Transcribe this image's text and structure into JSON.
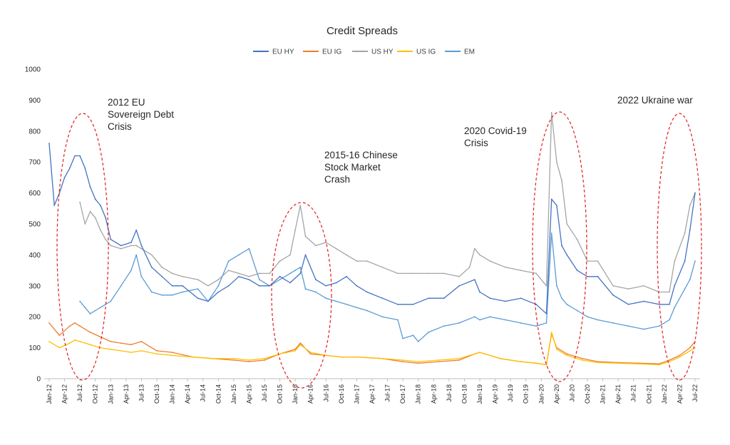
{
  "chart_data": {
    "type": "line",
    "title": "Credit Spreads",
    "xlabel": "",
    "ylabel": "",
    "ylim": [
      0,
      1000
    ],
    "yticks": [
      0,
      100,
      200,
      300,
      400,
      500,
      600,
      700,
      800,
      900,
      1000
    ],
    "xticks": [
      "Jan-12",
      "Apr-12",
      "Jul-12",
      "Oct-12",
      "Jan-13",
      "Apr-13",
      "Jul-13",
      "Oct-13",
      "Jan-14",
      "Apr-14",
      "Jul-14",
      "Oct-14",
      "Jan-15",
      "Apr-15",
      "Jul-15",
      "Oct-15",
      "Jan-16",
      "Apr-16",
      "Jul-16",
      "Oct-16",
      "Jan-17",
      "Apr-17",
      "Jul-17",
      "Oct-17",
      "Jan-18",
      "Apr-18",
      "Jul-18",
      "Oct-18",
      "Jan-19",
      "Apr-19",
      "Jul-19",
      "Oct-19",
      "Jan-20",
      "Apr-20",
      "Jul-20",
      "Oct-20",
      "Jan-21",
      "Apr-21",
      "Jul-21",
      "Oct-21",
      "Jan-22",
      "Apr-22",
      "Jul-22"
    ],
    "legend_position": "top",
    "grid": false,
    "series": [
      {
        "name": "EU HY",
        "color": "#4472c4",
        "x": [
          "2012-01",
          "2012-02",
          "2012-03",
          "2012-04",
          "2012-05",
          "2012-06",
          "2012-07",
          "2012-08",
          "2012-09",
          "2012-10",
          "2012-11",
          "2012-12",
          "2013-01",
          "2013-03",
          "2013-05",
          "2013-06",
          "2013-07",
          "2013-09",
          "2013-11",
          "2014-01",
          "2014-03",
          "2014-06",
          "2014-08",
          "2014-10",
          "2014-12",
          "2015-02",
          "2015-04",
          "2015-06",
          "2015-08",
          "2015-10",
          "2015-12",
          "2016-02",
          "2016-03",
          "2016-05",
          "2016-07",
          "2016-09",
          "2016-11",
          "2017-01",
          "2017-03",
          "2017-06",
          "2017-09",
          "2017-12",
          "2018-03",
          "2018-06",
          "2018-09",
          "2018-12",
          "2019-01",
          "2019-03",
          "2019-06",
          "2019-09",
          "2019-12",
          "2020-02",
          "2020-03",
          "2020-04",
          "2020-05",
          "2020-06",
          "2020-08",
          "2020-10",
          "2020-12",
          "2021-03",
          "2021-06",
          "2021-09",
          "2021-12",
          "2022-02",
          "2022-03",
          "2022-05",
          "2022-06",
          "2022-07"
        ],
        "values": [
          760,
          560,
          600,
          650,
          680,
          720,
          720,
          680,
          620,
          580,
          560,
          520,
          450,
          430,
          440,
          480,
          430,
          360,
          330,
          300,
          300,
          260,
          250,
          280,
          300,
          330,
          320,
          300,
          300,
          330,
          310,
          340,
          400,
          320,
          300,
          310,
          330,
          300,
          280,
          260,
          240,
          240,
          260,
          260,
          300,
          320,
          280,
          260,
          250,
          260,
          240,
          210,
          580,
          560,
          430,
          400,
          350,
          330,
          330,
          270,
          240,
          250,
          240,
          240,
          300,
          380,
          480,
          600
        ]
      },
      {
        "name": "EU IG",
        "color": "#ed7d31",
        "x": [
          "2012-01",
          "2012-03",
          "2012-05",
          "2012-06",
          "2012-07",
          "2012-09",
          "2012-11",
          "2013-01",
          "2013-03",
          "2013-05",
          "2013-07",
          "2013-10",
          "2014-01",
          "2014-05",
          "2014-09",
          "2015-01",
          "2015-04",
          "2015-07",
          "2015-10",
          "2016-01",
          "2016-02",
          "2016-04",
          "2016-07",
          "2016-10",
          "2017-01",
          "2017-06",
          "2017-10",
          "2018-01",
          "2018-05",
          "2018-09",
          "2018-12",
          "2019-01",
          "2019-05",
          "2019-09",
          "2019-12",
          "2020-02",
          "2020-03",
          "2020-04",
          "2020-06",
          "2020-09",
          "2020-12",
          "2021-04",
          "2021-08",
          "2021-12",
          "2022-02",
          "2022-04",
          "2022-06",
          "2022-07"
        ],
        "values": [
          180,
          140,
          170,
          180,
          170,
          150,
          135,
          120,
          115,
          110,
          120,
          90,
          85,
          70,
          65,
          60,
          55,
          60,
          80,
          95,
          115,
          80,
          75,
          70,
          70,
          65,
          55,
          50,
          55,
          60,
          80,
          85,
          65,
          55,
          50,
          45,
          145,
          100,
          80,
          65,
          55,
          52,
          50,
          48,
          60,
          75,
          100,
          120
        ]
      },
      {
        "name": "US HY",
        "color": "#a5a5a5",
        "x": [
          "2012-07",
          "2012-08",
          "2012-09",
          "2012-10",
          "2012-11",
          "2012-12",
          "2013-01",
          "2013-03",
          "2013-05",
          "2013-06",
          "2013-07",
          "2013-09",
          "2013-11",
          "2014-01",
          "2014-03",
          "2014-06",
          "2014-08",
          "2014-10",
          "2014-12",
          "2015-02",
          "2015-04",
          "2015-06",
          "2015-08",
          "2015-10",
          "2015-12",
          "2016-01",
          "2016-02",
          "2016-03",
          "2016-05",
          "2016-07",
          "2016-09",
          "2016-11",
          "2017-01",
          "2017-03",
          "2017-06",
          "2017-09",
          "2017-12",
          "2018-03",
          "2018-06",
          "2018-09",
          "2018-11",
          "2018-12",
          "2019-01",
          "2019-03",
          "2019-06",
          "2019-09",
          "2019-12",
          "2020-02",
          "2020-03",
          "2020-04",
          "2020-05",
          "2020-06",
          "2020-08",
          "2020-10",
          "2020-12",
          "2021-03",
          "2021-06",
          "2021-09",
          "2021-12",
          "2022-02",
          "2022-03",
          "2022-05",
          "2022-06",
          "2022-07"
        ],
        "values": [
          570,
          500,
          540,
          520,
          480,
          450,
          430,
          420,
          430,
          430,
          420,
          400,
          360,
          340,
          330,
          320,
          300,
          320,
          350,
          340,
          330,
          340,
          340,
          380,
          400,
          480,
          560,
          460,
          430,
          440,
          420,
          400,
          380,
          380,
          360,
          340,
          340,
          340,
          340,
          330,
          360,
          420,
          400,
          380,
          360,
          350,
          340,
          300,
          860,
          700,
          640,
          500,
          450,
          380,
          380,
          300,
          290,
          300,
          280,
          280,
          380,
          470,
          560,
          600
        ]
      },
      {
        "name": "US IG",
        "color": "#ffc000",
        "x": [
          "2012-01",
          "2012-03",
          "2012-05",
          "2012-06",
          "2012-07",
          "2012-09",
          "2012-11",
          "2013-01",
          "2013-03",
          "2013-05",
          "2013-07",
          "2013-10",
          "2014-01",
          "2014-05",
          "2014-09",
          "2015-01",
          "2015-04",
          "2015-07",
          "2015-10",
          "2016-01",
          "2016-02",
          "2016-04",
          "2016-07",
          "2016-10",
          "2017-01",
          "2017-06",
          "2017-10",
          "2018-01",
          "2018-05",
          "2018-09",
          "2018-12",
          "2019-01",
          "2019-05",
          "2019-09",
          "2019-12",
          "2020-02",
          "2020-03",
          "2020-04",
          "2020-06",
          "2020-09",
          "2020-12",
          "2021-04",
          "2021-08",
          "2021-12",
          "2022-02",
          "2022-04",
          "2022-06",
          "2022-07"
        ],
        "values": [
          120,
          100,
          115,
          125,
          120,
          110,
          100,
          95,
          90,
          85,
          90,
          80,
          75,
          70,
          65,
          65,
          60,
          65,
          80,
          90,
          110,
          85,
          75,
          70,
          70,
          65,
          60,
          55,
          60,
          65,
          80,
          85,
          65,
          55,
          50,
          45,
          150,
          95,
          75,
          60,
          52,
          50,
          48,
          45,
          55,
          70,
          90,
          100
        ]
      },
      {
        "name": "EM",
        "color": "#5b9bd5",
        "x": [
          "2012-07",
          "2012-08",
          "2012-09",
          "2012-10",
          "2012-11",
          "2012-12",
          "2013-01",
          "2013-03",
          "2013-05",
          "2013-06",
          "2013-07",
          "2013-09",
          "2013-11",
          "2014-01",
          "2014-03",
          "2014-06",
          "2014-08",
          "2014-10",
          "2014-12",
          "2015-02",
          "2015-04",
          "2015-06",
          "2015-08",
          "2015-10",
          "2015-12",
          "2016-01",
          "2016-02",
          "2016-03",
          "2016-05",
          "2016-07",
          "2016-09",
          "2016-11",
          "2017-01",
          "2017-03",
          "2017-06",
          "2017-09",
          "2017-10",
          "2017-12",
          "2018-01",
          "2018-03",
          "2018-06",
          "2018-09",
          "2018-12",
          "2019-01",
          "2019-03",
          "2019-06",
          "2019-09",
          "2019-12",
          "2020-02",
          "2020-03",
          "2020-04",
          "2020-05",
          "2020-06",
          "2020-08",
          "2020-10",
          "2020-12",
          "2021-03",
          "2021-06",
          "2021-09",
          "2021-12",
          "2022-02",
          "2022-03",
          "2022-05",
          "2022-06",
          "2022-07"
        ],
        "values": [
          250,
          230,
          210,
          220,
          230,
          240,
          250,
          300,
          350,
          400,
          330,
          280,
          270,
          270,
          280,
          290,
          250,
          300,
          380,
          400,
          420,
          320,
          300,
          320,
          340,
          350,
          360,
          290,
          280,
          260,
          250,
          240,
          230,
          220,
          200,
          190,
          130,
          140,
          120,
          150,
          170,
          180,
          200,
          190,
          200,
          190,
          180,
          170,
          180,
          470,
          300,
          260,
          240,
          220,
          200,
          190,
          180,
          170,
          160,
          170,
          190,
          230,
          290,
          320,
          380
        ]
      }
    ],
    "annotations": [
      {
        "lines": [
          "2012 EU",
          "Sovereign Debt",
          "Crisis"
        ]
      },
      {
        "lines": [
          "2015-16 Chinese",
          "Stock Market",
          "Crash"
        ]
      },
      {
        "lines": [
          "2020 Covid-19",
          "Crisis"
        ]
      },
      {
        "lines": [
          "2022 Ukraine war"
        ]
      }
    ]
  }
}
